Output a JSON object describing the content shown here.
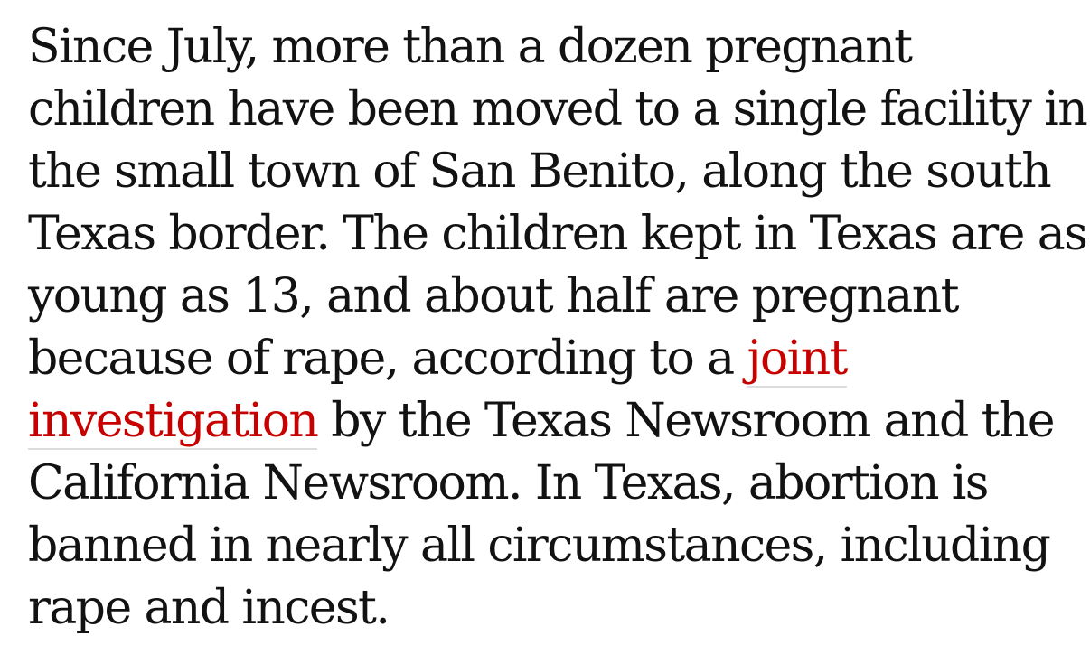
{
  "paragraph": {
    "lines": [
      "Since July, more than a dozen pregnant",
      "children have been moved to a single facility in",
      "the small town of San Benito, along the south",
      "Texas border. The children kept in Texas are as",
      "young as 13, and about half are pregnant"
    ],
    "line6_before_link": "because of rape, according to a ",
    "link_part1": "joint",
    "link_part2": "investigation",
    "line7_after_link": " by the Texas Newsroom and the",
    "lines_end": [
      "California Newsroom. In Texas, abortion is",
      "banned in nearly all circumstances, including",
      "rape and incest."
    ]
  },
  "colors": {
    "text": "#121212",
    "link": "#c70000",
    "link_underline": "#dcdcdc",
    "background": "#ffffff"
  }
}
